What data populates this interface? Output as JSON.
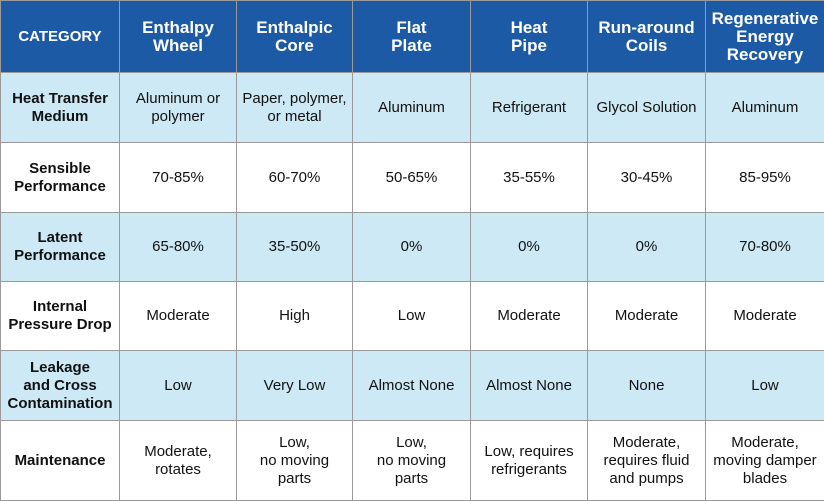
{
  "table": {
    "header": {
      "category": "CATEGORY",
      "columns": [
        "Enthalpy\nWheel",
        "Enthalpic\nCore",
        "Flat\nPlate",
        "Heat\nPipe",
        "Run-around\nCoils",
        "Regenerative\nEnergy\nRecovery"
      ]
    },
    "rows": [
      {
        "label": "Heat Transfer\nMedium",
        "cells": [
          "Aluminum or\npolymer",
          "Paper, polymer,\nor metal",
          "Aluminum",
          "Refrigerant",
          "Glycol Solution",
          "Aluminum"
        ]
      },
      {
        "label": "Sensible\nPerformance",
        "cells": [
          "70-85%",
          "60-70%",
          "50-65%",
          "35-55%",
          "30-45%",
          "85-95%"
        ]
      },
      {
        "label": "Latent\nPerformance",
        "cells": [
          "65-80%",
          "35-50%",
          "0%",
          "0%",
          "0%",
          "70-80%"
        ]
      },
      {
        "label": "Internal\nPressure Drop",
        "cells": [
          "Moderate",
          "High",
          "Low",
          "Moderate",
          "Moderate",
          "Moderate"
        ]
      },
      {
        "label": "Leakage\nand Cross\nContamination",
        "cells": [
          "Low",
          "Very Low",
          "Almost None",
          "Almost None",
          "None",
          "Low"
        ]
      },
      {
        "label": "Maintenance",
        "cells": [
          "Moderate,\nrotates",
          "Low,\nno moving\nparts",
          "Low,\nno moving\nparts",
          "Low, requires\nrefrigerants",
          "Moderate,\nrequires fluid\nand pumps",
          "Moderate,\nmoving damper\nblades"
        ]
      }
    ]
  },
  "colors": {
    "header_bg": "#1d5aa6",
    "header_text": "#ffffff",
    "shade_row": "#cde9f6",
    "plain_row": "#ffffff",
    "border": "#9a9a9a"
  }
}
